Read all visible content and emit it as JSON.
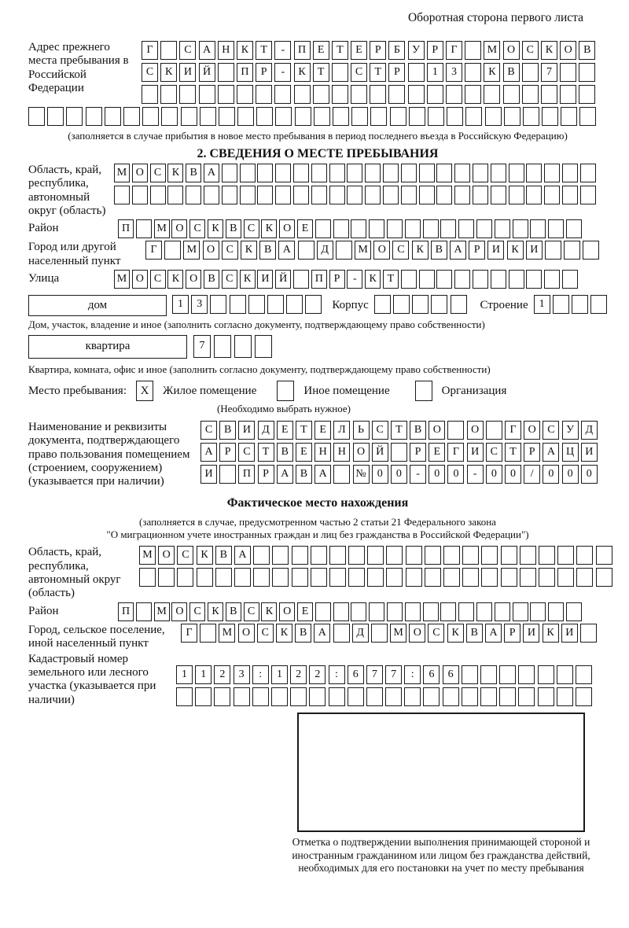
{
  "page": {
    "header_note": "Оборотная сторона первого листа"
  },
  "prev_address": {
    "label": "Адрес прежнего места пребывания в Российской Федерации",
    "rows": {
      "r1": {
        "text": "Г САНКТ-ПЕТЕРБУРГ МОСКОВ",
        "count": 24
      },
      "r2": {
        "text": "СКИЙ ПР-КТ СТР 13 КВ 7",
        "count": 24
      },
      "r3": {
        "text": "",
        "count": 24
      },
      "r4": {
        "text": "",
        "count": 30
      }
    },
    "caption": "(заполняется в случае прибытия в новое место пребывания в период последнего въезда в Российскую Федерацию)"
  },
  "stay_info": {
    "heading": "2. СВЕДЕНИЯ О МЕСТЕ ПРЕБЫВАНИЯ",
    "region": {
      "label": "Область, край, республика, автономный округ (область)",
      "r1": {
        "text": "МОСКВА",
        "count": 27
      },
      "r2": {
        "text": "",
        "count": 27
      }
    },
    "district": {
      "label": "Район",
      "r1": {
        "text": "П МОСКВСКОЕ",
        "count": 26
      }
    },
    "city": {
      "label": "Город или другой населенный пункт",
      "r1": {
        "text": "Г МОСКВА Д МОСКВАРИКИ",
        "count": 24
      }
    },
    "street": {
      "label": "Улица",
      "r1": {
        "text": "МОСКОВСКИЙ ПР-КТ",
        "count": 26
      }
    },
    "house": {
      "box_label": "дом",
      "number": {
        "text": "13",
        "count": 8
      },
      "korpus_label": "Корпус",
      "korpus": {
        "text": "",
        "count": 5
      },
      "stroenie_label": "Строение",
      "stroenie": {
        "text": "1",
        "count": 4
      },
      "caption": "Дом, участок, владение и иное (заполнить согласно документу, подтверждающему право собственности)"
    },
    "apartment": {
      "box_label": "квартира",
      "number": {
        "text": "7",
        "count": 4
      },
      "caption": "Квартира, комната, офис и иное (заполнить согласно документу, подтверждающему право собственности)"
    },
    "stay_type": {
      "label": "Место пребывания:",
      "options": [
        {
          "label": "Жилое помещение",
          "mark": "X"
        },
        {
          "label": "Иное помещение",
          "mark": ""
        },
        {
          "label": "Организация",
          "mark": ""
        }
      ],
      "note": "(Необходимо выбрать нужное)"
    },
    "document": {
      "label": "Наименование и реквизиты документа, подтверждающего право пользования помещением (строением, сооружением) (указывается при наличии)",
      "r1": {
        "text": "СВИДЕТЕЛЬСТВО О ГОСУД",
        "count": 21
      },
      "r2": {
        "text": "АРСТВЕННОЙ РЕГИСТРАЦИ",
        "count": 21
      },
      "r3": {
        "text": "И ПРАВА №00-00-00/000",
        "count": 21
      }
    }
  },
  "actual_location": {
    "heading": "Фактическое место нахождения",
    "caption_line1": "(заполняется в случае, предусмотренном частью 2 статьи 21 Федерального закона",
    "caption_line2": "\"О миграционном учете иностранных граждан и лиц без гражданства в Российской Федерации\")",
    "region": {
      "label": "Область, край, республика, автономный округ (область)",
      "r1": {
        "text": "МОСКВА",
        "count": 25
      },
      "r2": {
        "text": "",
        "count": 25
      }
    },
    "district": {
      "label": "Район",
      "r1": {
        "text": "П МОСКВСКОЕ",
        "count": 26
      }
    },
    "city": {
      "label": "Город, сельское поселение, иной населенный пункт",
      "r1": {
        "text": "Г МОСКВА Д МОСКВАРИКИ",
        "count": 22
      }
    },
    "cadastre": {
      "label": "Кадастровый номер земельного или лесного участка (указывается при наличии)",
      "r1": {
        "text": "1123:122:677:66",
        "count": 22
      },
      "r2": {
        "text": "",
        "count": 22
      }
    },
    "confirmation": {
      "caption": "Отметка о подтверждении выполнения принимающей стороной и иностранным гражданином или лицом без гражданства действий, необходимых для его постановки на учет по месту пребывания"
    }
  }
}
